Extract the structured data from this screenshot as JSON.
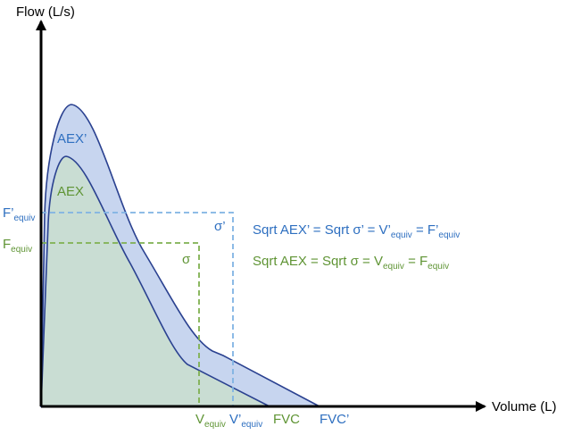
{
  "axes": {
    "y_label": "Flow (L/s)",
    "x_label": "Volume (L)"
  },
  "curves": {
    "outer_label": "AEX’",
    "inner_label": "AEX"
  },
  "squares": {
    "outer_label": "σ’",
    "inner_label": "σ"
  },
  "y_ticks": {
    "f_prime": "F’",
    "f_prime_sub": "equiv",
    "f": "F",
    "f_sub": "equiv"
  },
  "x_ticks": {
    "v": "V",
    "v_sub": "equiv",
    "v_prime": "V’",
    "v_prime_sub": "equiv",
    "fvc": "FVC",
    "fvc_prime": "FVC’"
  },
  "equations": {
    "blue": {
      "lead": "Sqrt AEX’ = Sqrt σ’  = V’",
      "sub1": "equiv",
      "mid": " = F’",
      "sub2": "equiv"
    },
    "green": {
      "lead": "Sqrt AEX = Sqrt σ   = V",
      "sub1": "equiv",
      "mid": " = F",
      "sub2": "equiv"
    }
  },
  "colors": {
    "blue": "#2e6fc0",
    "green": "#5f9434",
    "outer_fill": "#c7d5ef",
    "inner_fill": "#c9ddd3",
    "outline": "#2a4190",
    "blue_dash": "#7fb3e3",
    "green_dash": "#7fb050"
  }
}
